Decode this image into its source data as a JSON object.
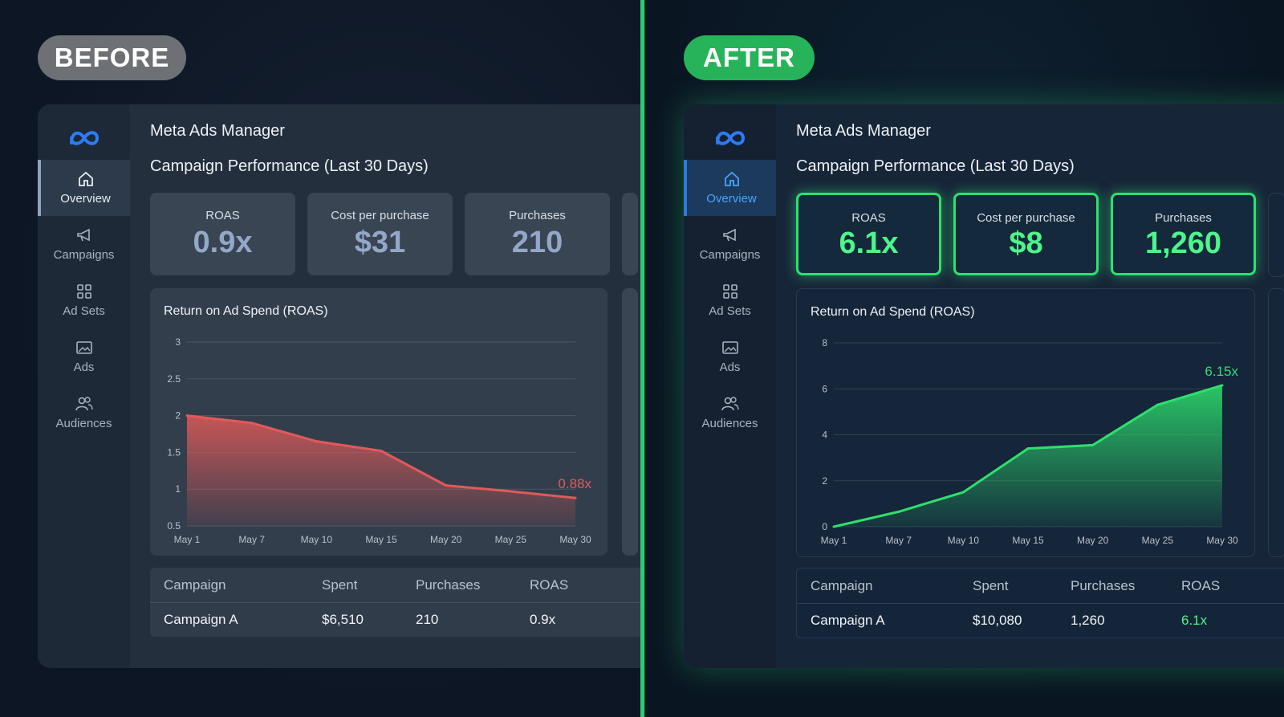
{
  "before": {
    "label": "BEFORE",
    "app_title": "Meta Ads Manager",
    "section_title": "Campaign Performance (Last 30 Days)",
    "sidebar": [
      {
        "label": "Overview",
        "icon": "home-icon",
        "active": true
      },
      {
        "label": "Campaigns",
        "icon": "megaphone-icon"
      },
      {
        "label": "Ad Sets",
        "icon": "grid-icon"
      },
      {
        "label": "Ads",
        "icon": "image-icon"
      },
      {
        "label": "Audiences",
        "icon": "users-icon"
      }
    ],
    "kpis": [
      {
        "label": "ROAS",
        "value": "0.9x"
      },
      {
        "label": "Cost per purchase",
        "value": "$31"
      },
      {
        "label": "Purchases",
        "value": "210"
      }
    ],
    "table": {
      "headers": [
        "Campaign",
        "Spent",
        "Purchases",
        "ROAS"
      ],
      "rows": [
        [
          "Campaign A",
          "$6,510",
          "210",
          "0.9x"
        ]
      ]
    },
    "chart_data": {
      "type": "area",
      "title": "Return on Ad Spend (ROAS)",
      "x": [
        "May 1",
        "May 7",
        "May 10",
        "May 15",
        "May 20",
        "May 25",
        "May 30"
      ],
      "values": [
        2.0,
        1.9,
        1.65,
        1.52,
        1.05,
        0.97,
        0.88
      ],
      "yticks": [
        "0.5",
        "1",
        "1.5",
        "2",
        "2.5",
        "3"
      ],
      "ylim": [
        0.5,
        3
      ],
      "end_label": "0.88x",
      "color": "#e05a5a",
      "grid": true
    }
  },
  "after": {
    "label": "AFTER",
    "app_title": "Meta Ads Manager",
    "section_title": "Campaign Performance (Last 30 Days)",
    "sidebar": [
      {
        "label": "Overview",
        "icon": "home-icon",
        "active": true
      },
      {
        "label": "Campaigns",
        "icon": "megaphone-icon"
      },
      {
        "label": "Ad Sets",
        "icon": "grid-icon"
      },
      {
        "label": "Ads",
        "icon": "image-icon"
      },
      {
        "label": "Audiences",
        "icon": "users-icon"
      }
    ],
    "kpis": [
      {
        "label": "ROAS",
        "value": "6.1x"
      },
      {
        "label": "Cost per purchase",
        "value": "$8"
      },
      {
        "label": "Purchases",
        "value": "1,260"
      }
    ],
    "table": {
      "headers": [
        "Campaign",
        "Spent",
        "Purchases",
        "ROAS"
      ],
      "rows": [
        [
          "Campaign A",
          "$10,080",
          "1,260",
          "6.1x"
        ]
      ]
    },
    "chart_data": {
      "type": "area",
      "title": "Return on Ad Spend (ROAS)",
      "x": [
        "May 1",
        "May 7",
        "May 10",
        "May 15",
        "May 20",
        "May 25",
        "May 30"
      ],
      "values": [
        0.0,
        0.65,
        1.5,
        3.4,
        3.55,
        5.3,
        6.15
      ],
      "yticks": [
        "0",
        "2",
        "4",
        "6",
        "8"
      ],
      "ylim": [
        0,
        8
      ],
      "end_label": "6.15x",
      "color": "#2ee06e",
      "grid": true
    }
  },
  "colors": {
    "divider": "#2ecc71",
    "before_accent": "#e05a5a",
    "after_accent": "#2ee06e",
    "active_nav_after": "#4aa3ff"
  }
}
